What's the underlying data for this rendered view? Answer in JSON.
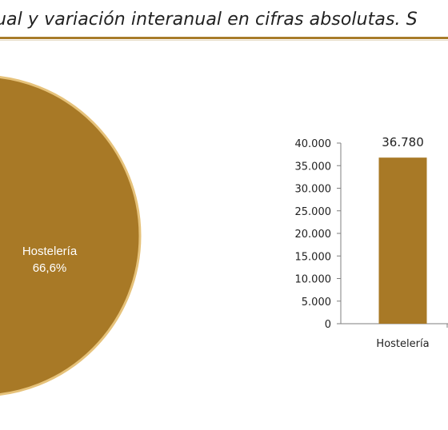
{
  "page": {
    "title": "ual y variación interanual en cifras absolutas. S"
  },
  "colors": {
    "bar": "#a87926",
    "pie": "#a87926",
    "pie_rim": "#e6c27a",
    "rule": "#a87c2a",
    "axis": "#7f7f7f",
    "text": "#222222"
  },
  "chart_data": [
    {
      "type": "pie",
      "slices": [
        {
          "label": "Hostelería",
          "percent": 66.6,
          "percent_label": "66,6%"
        }
      ]
    },
    {
      "type": "bar",
      "categories": [
        "Hostelería"
      ],
      "values": [
        36780
      ],
      "value_labels": [
        "36.780"
      ],
      "ylim": [
        0,
        40000
      ],
      "yticks": [
        0,
        5000,
        10000,
        15000,
        20000,
        25000,
        30000,
        35000,
        40000
      ],
      "ytick_labels": [
        "0",
        "5.000",
        "10.000",
        "15.000",
        "20.000",
        "25.000",
        "30.000",
        "35.000",
        "40.000"
      ],
      "grid": false
    }
  ]
}
